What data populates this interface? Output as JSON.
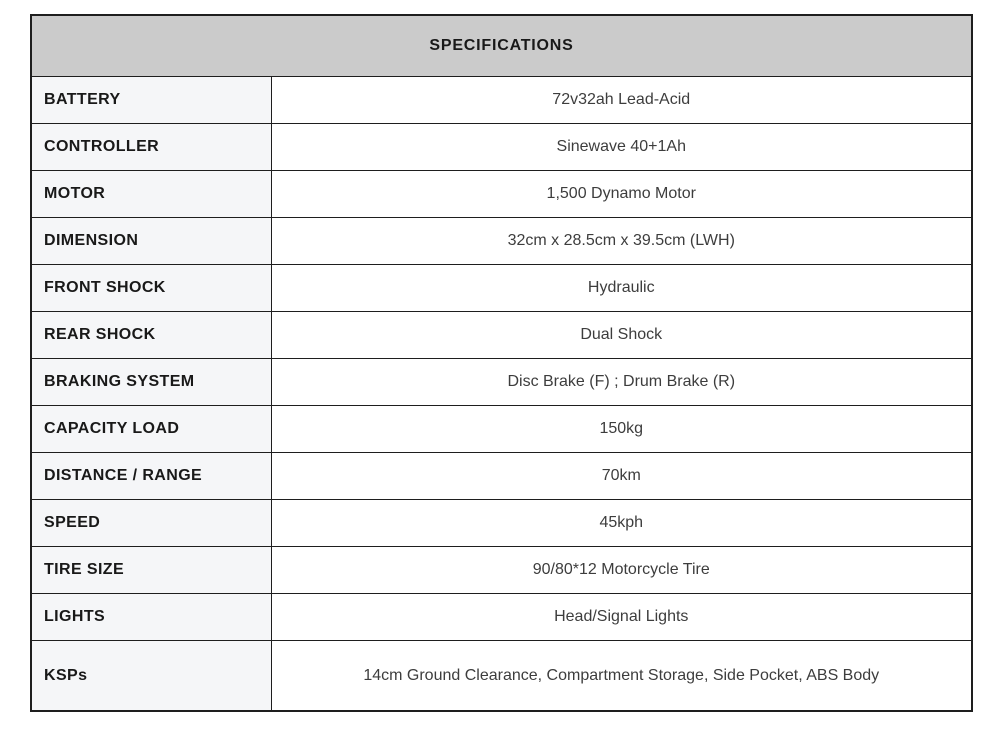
{
  "table": {
    "title": "SPECIFICATIONS",
    "rows": [
      {
        "label": "BATTERY",
        "value": "72v32ah Lead-Acid"
      },
      {
        "label": "CONTROLLER",
        "value": "Sinewave 40+1Ah"
      },
      {
        "label": "MOTOR",
        "value": "1,500 Dynamo Motor"
      },
      {
        "label": "DIMENSION",
        "value": "32cm x 28.5cm x 39.5cm (LWH)"
      },
      {
        "label": "FRONT SHOCK",
        "value": "Hydraulic"
      },
      {
        "label": "REAR SHOCK",
        "value": "Dual Shock"
      },
      {
        "label": "BRAKING SYSTEM",
        "value": "Disc Brake (F) ; Drum Brake (R)"
      },
      {
        "label": "CAPACITY LOAD",
        "value": "150kg"
      },
      {
        "label": "DISTANCE / RANGE",
        "value": "70km"
      },
      {
        "label": "SPEED",
        "value": "45kph"
      },
      {
        "label": "TIRE SIZE",
        "value": "90/80*12 Motorcycle Tire"
      },
      {
        "label": "LIGHTS",
        "value": "Head/Signal Lights"
      },
      {
        "label": "KSPs",
        "value": "14cm Ground Clearance, Compartment Storage, Side Pocket, ABS Body"
      }
    ],
    "colors": {
      "header_bg": "#cbcbcb",
      "label_cell_bg": "#f5f6f8",
      "value_cell_bg": "#ffffff",
      "border": "#1e1e1e",
      "label_text": "#191919",
      "value_text": "#3d3d3d"
    }
  }
}
